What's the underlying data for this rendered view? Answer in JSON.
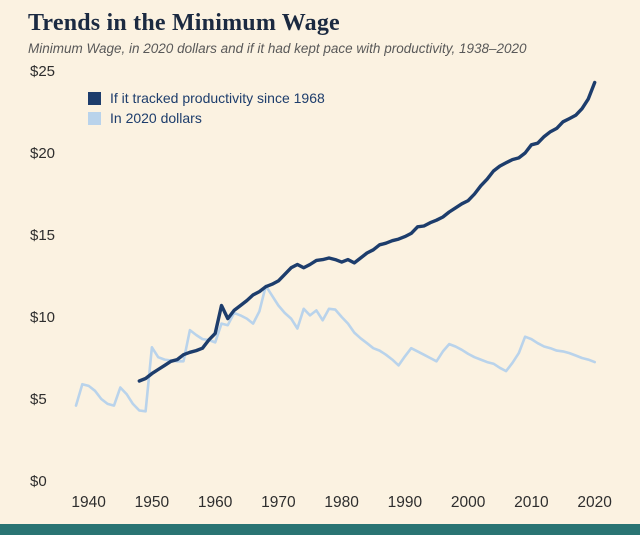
{
  "header": {
    "title": "Trends in the Minimum Wage",
    "subtitle": "Minimum Wage, in 2020 dollars and if it had kept pace with productivity, 1938–2020"
  },
  "colors": {
    "background": "#fbf2e1",
    "accent_bar": "#2a7473",
    "title_text": "#1b2a41",
    "subtitle_text": "#595959",
    "axis_text": "#2e2e2e",
    "legend_text": "#1d3d6c",
    "navy": "#1d3d6c",
    "light_blue": "#b9d3eb"
  },
  "chart_data": {
    "type": "line",
    "title": "Trends in the Minimum Wage",
    "subtitle": "Minimum Wage, in 2020 dollars and if it had kept pace with productivity, 1938–2020",
    "xlabel": "",
    "ylabel": "",
    "xlim": [
      1938,
      2021
    ],
    "ylim": [
      0,
      25
    ],
    "grid": false,
    "legend_position": "top-left",
    "x_ticks": [
      1940,
      1950,
      1960,
      1970,
      1980,
      1990,
      2000,
      2010,
      2020
    ],
    "y_ticks": [
      {
        "label": "$0",
        "value": 0
      },
      {
        "label": "$5",
        "value": 5
      },
      {
        "label": "$10",
        "value": 10
      },
      {
        "label": "$15",
        "value": 15
      },
      {
        "label": "$20",
        "value": 20
      },
      {
        "label": "$25",
        "value": 25
      }
    ],
    "legend": [
      {
        "label": "If it tracked productivity since 1968",
        "color": "#1d3d6c"
      },
      {
        "label": "In 2020 dollars",
        "color": "#b9d3eb"
      }
    ],
    "series": [
      {
        "name": "If it tracked productivity since 1968",
        "color": "#1d3d6c",
        "width": 3.4,
        "points": [
          [
            1948,
            6.1
          ],
          [
            1949,
            6.25
          ],
          [
            1950,
            6.55
          ],
          [
            1951,
            6.8
          ],
          [
            1952,
            7.05
          ],
          [
            1953,
            7.3
          ],
          [
            1954,
            7.4
          ],
          [
            1955,
            7.7
          ],
          [
            1956,
            7.85
          ],
          [
            1957,
            7.95
          ],
          [
            1958,
            8.1
          ],
          [
            1959,
            8.6
          ],
          [
            1960,
            9.0
          ],
          [
            1961,
            10.7
          ],
          [
            1962,
            9.9
          ],
          [
            1963,
            10.4
          ],
          [
            1964,
            10.7
          ],
          [
            1965,
            11.0
          ],
          [
            1966,
            11.35
          ],
          [
            1967,
            11.55
          ],
          [
            1968,
            11.85
          ],
          [
            1969,
            12.0
          ],
          [
            1970,
            12.2
          ],
          [
            1971,
            12.6
          ],
          [
            1972,
            13.0
          ],
          [
            1973,
            13.2
          ],
          [
            1974,
            13.0
          ],
          [
            1975,
            13.2
          ],
          [
            1976,
            13.45
          ],
          [
            1977,
            13.5
          ],
          [
            1978,
            13.6
          ],
          [
            1979,
            13.5
          ],
          [
            1980,
            13.35
          ],
          [
            1981,
            13.5
          ],
          [
            1982,
            13.3
          ],
          [
            1983,
            13.6
          ],
          [
            1984,
            13.9
          ],
          [
            1985,
            14.1
          ],
          [
            1986,
            14.4
          ],
          [
            1987,
            14.5
          ],
          [
            1988,
            14.65
          ],
          [
            1989,
            14.75
          ],
          [
            1990,
            14.9
          ],
          [
            1991,
            15.1
          ],
          [
            1992,
            15.5
          ],
          [
            1993,
            15.55
          ],
          [
            1994,
            15.75
          ],
          [
            1995,
            15.9
          ],
          [
            1996,
            16.1
          ],
          [
            1997,
            16.4
          ],
          [
            1998,
            16.65
          ],
          [
            1999,
            16.9
          ],
          [
            2000,
            17.1
          ],
          [
            2001,
            17.5
          ],
          [
            2002,
            18.0
          ],
          [
            2003,
            18.4
          ],
          [
            2004,
            18.9
          ],
          [
            2005,
            19.2
          ],
          [
            2006,
            19.4
          ],
          [
            2007,
            19.6
          ],
          [
            2008,
            19.7
          ],
          [
            2009,
            20.0
          ],
          [
            2010,
            20.5
          ],
          [
            2011,
            20.6
          ],
          [
            2012,
            21.0
          ],
          [
            2013,
            21.3
          ],
          [
            2014,
            21.5
          ],
          [
            2015,
            21.9
          ],
          [
            2016,
            22.1
          ],
          [
            2017,
            22.3
          ],
          [
            2018,
            22.7
          ],
          [
            2019,
            23.3
          ],
          [
            2020,
            24.3
          ]
        ]
      },
      {
        "name": "In 2020 dollars",
        "color": "#b9d3eb",
        "width": 2.6,
        "points": [
          [
            1938,
            4.6
          ],
          [
            1939,
            5.9
          ],
          [
            1940,
            5.8
          ],
          [
            1941,
            5.5
          ],
          [
            1942,
            5.0
          ],
          [
            1943,
            4.7
          ],
          [
            1944,
            4.6
          ],
          [
            1945,
            5.7
          ],
          [
            1946,
            5.3
          ],
          [
            1947,
            4.7
          ],
          [
            1948,
            4.3
          ],
          [
            1949,
            4.25
          ],
          [
            1950,
            8.15
          ],
          [
            1951,
            7.55
          ],
          [
            1952,
            7.4
          ],
          [
            1953,
            7.35
          ],
          [
            1954,
            7.3
          ],
          [
            1955,
            7.3
          ],
          [
            1956,
            9.2
          ],
          [
            1957,
            8.9
          ],
          [
            1958,
            8.65
          ],
          [
            1959,
            8.6
          ],
          [
            1960,
            8.45
          ],
          [
            1961,
            9.6
          ],
          [
            1962,
            9.5
          ],
          [
            1963,
            10.25
          ],
          [
            1964,
            10.1
          ],
          [
            1965,
            9.9
          ],
          [
            1966,
            9.6
          ],
          [
            1967,
            10.35
          ],
          [
            1968,
            11.9
          ],
          [
            1969,
            11.3
          ],
          [
            1970,
            10.7
          ],
          [
            1971,
            10.25
          ],
          [
            1972,
            9.9
          ],
          [
            1973,
            9.3
          ],
          [
            1974,
            10.5
          ],
          [
            1975,
            10.1
          ],
          [
            1976,
            10.4
          ],
          [
            1977,
            9.8
          ],
          [
            1978,
            10.5
          ],
          [
            1979,
            10.45
          ],
          [
            1980,
            10.0
          ],
          [
            1981,
            9.6
          ],
          [
            1982,
            9.05
          ],
          [
            1983,
            8.7
          ],
          [
            1984,
            8.4
          ],
          [
            1985,
            8.1
          ],
          [
            1986,
            7.95
          ],
          [
            1987,
            7.7
          ],
          [
            1988,
            7.4
          ],
          [
            1989,
            7.05
          ],
          [
            1990,
            7.6
          ],
          [
            1991,
            8.1
          ],
          [
            1992,
            7.9
          ],
          [
            1993,
            7.7
          ],
          [
            1994,
            7.5
          ],
          [
            1995,
            7.3
          ],
          [
            1996,
            7.9
          ],
          [
            1997,
            8.35
          ],
          [
            1998,
            8.2
          ],
          [
            1999,
            8.0
          ],
          [
            2000,
            7.75
          ],
          [
            2001,
            7.55
          ],
          [
            2002,
            7.4
          ],
          [
            2003,
            7.25
          ],
          [
            2004,
            7.15
          ],
          [
            2005,
            6.9
          ],
          [
            2006,
            6.7
          ],
          [
            2007,
            7.2
          ],
          [
            2008,
            7.8
          ],
          [
            2009,
            8.8
          ],
          [
            2010,
            8.65
          ],
          [
            2011,
            8.4
          ],
          [
            2012,
            8.2
          ],
          [
            2013,
            8.1
          ],
          [
            2014,
            7.95
          ],
          [
            2015,
            7.9
          ],
          [
            2016,
            7.8
          ],
          [
            2017,
            7.65
          ],
          [
            2018,
            7.5
          ],
          [
            2019,
            7.4
          ],
          [
            2020,
            7.25
          ]
        ]
      }
    ]
  }
}
